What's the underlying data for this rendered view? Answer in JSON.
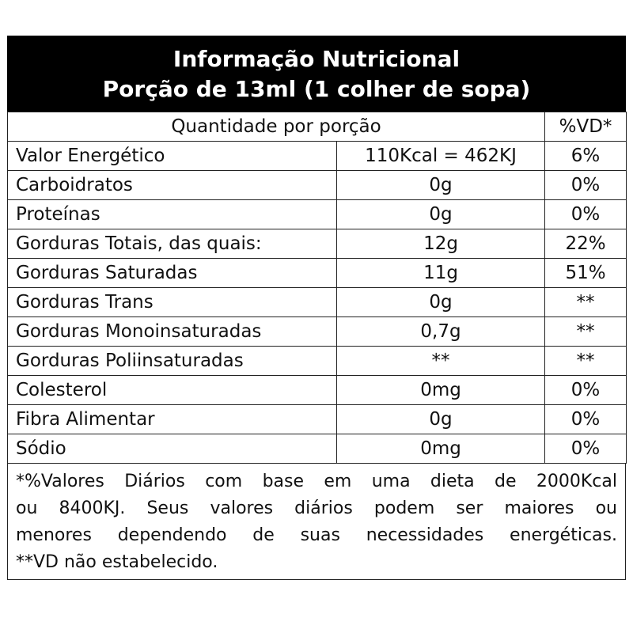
{
  "header": {
    "title": "Informação Nutricional",
    "subtitle": "Porção de 13ml (1 colher de sopa)"
  },
  "table": {
    "columns": [
      "Quantidade por porção",
      "%VD*"
    ],
    "rows": [
      [
        "Valor Energético",
        "110Kcal = 462KJ",
        "6%"
      ],
      [
        "Carboidratos",
        "0g",
        "0%"
      ],
      [
        "Proteínas",
        "0g",
        "0%"
      ],
      [
        "Gorduras Totais, das quais:",
        "12g",
        "22%"
      ],
      [
        "Gorduras Saturadas",
        "11g",
        "51%"
      ],
      [
        "Gorduras Trans",
        "0g",
        "**"
      ],
      [
        "Gorduras Monoinsaturadas",
        "0,7g",
        "**"
      ],
      [
        "Gorduras Poliinsaturadas",
        "**",
        "**"
      ],
      [
        "Colesterol",
        "0mg",
        "0%"
      ],
      [
        "Fibra Alimentar",
        "0g",
        "0%"
      ],
      [
        "Sódio",
        "0mg",
        "0%"
      ]
    ]
  },
  "footnote": [
    "*%Valores Diários com base em uma dieta de 2000Kcal",
    "ou 8400KJ. Seus valores diários podem ser maiores ou",
    "menores dependendo de suas necessidades energéticas.",
    "**VD não estabelecido."
  ]
}
